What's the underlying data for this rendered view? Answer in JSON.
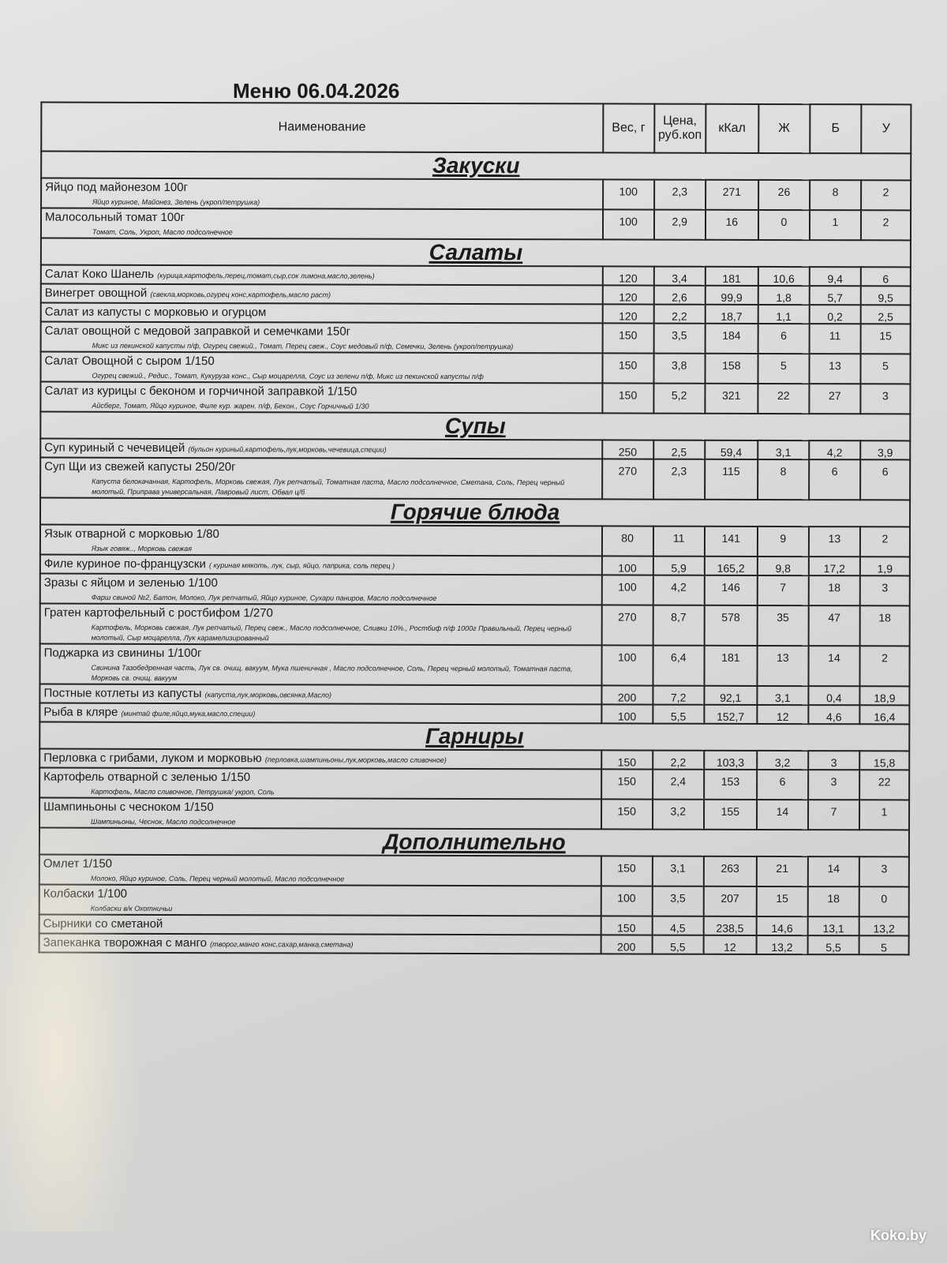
{
  "title": "Меню 06.04.2026",
  "columns": [
    "Наименование",
    "Вес, г",
    "Цена, руб.коп",
    "кКал",
    "Ж",
    "Б",
    "У"
  ],
  "sections": [
    {
      "title": "Закуски",
      "items": [
        {
          "name": "Яйцо под майонезом 100г",
          "ingredients": "Яйцо куриное, Майонез, Зелень (укроп/петрушка)",
          "inline": false,
          "values": [
            "100",
            "2,3",
            "271",
            "26",
            "8",
            "2"
          ]
        },
        {
          "name": "Малосольный томат 100г",
          "ingredients": "Томат, Соль, Укроп, Масло подсолнечное",
          "inline": false,
          "values": [
            "100",
            "2,9",
            "16",
            "0",
            "1",
            "2"
          ]
        }
      ]
    },
    {
      "title": "Салаты",
      "items": [
        {
          "name": "Салат Коко Шанель",
          "ingredients": "(курица,картофель,перец,томат,сыр,сок лимона,масло,зелень)",
          "inline": true,
          "values": [
            "120",
            "3,4",
            "181",
            "10,6",
            "9,4",
            "6"
          ]
        },
        {
          "name": "Винегрет овощной",
          "ingredients": "(свекла,морковь,огурец конс,картофель,масло раст)",
          "inline": true,
          "values": [
            "120",
            "2,6",
            "99,9",
            "1,8",
            "5,7",
            "9,5"
          ]
        },
        {
          "name": "Салат из капусты с морковью и огурцом",
          "ingredients": "",
          "inline": true,
          "values": [
            "120",
            "2,2",
            "18,7",
            "1,1",
            "0,2",
            "2,5"
          ]
        },
        {
          "name": "Салат овощной с медовой заправкой и семечками 150г",
          "ingredients": "Микс из пекинской капусты п/ф, Огурец свежий., Томат, Перец свеж., Соус медовый п/ф, Семечки, Зелень (укроп/петрушка)",
          "inline": false,
          "values": [
            "150",
            "3,5",
            "184",
            "6",
            "11",
            "15"
          ]
        },
        {
          "name": "Салат Овощной с сыром 1/150",
          "ingredients": "Огурец свежий., Редис., Томат, Кукуруза конс., Сыр моцарелла, Соус из зелени п/ф, Микс из пекинской капусты п/ф",
          "inline": false,
          "values": [
            "150",
            "3,8",
            "158",
            "5",
            "13",
            "5"
          ]
        },
        {
          "name": "Салат из курицы с беконом и горчичной заправкой 1/150",
          "ingredients": "Айсберг, Томат, Яйцо куриное, Филе кур. жарен. п/ф, Бекон., Соус Горчичный 1/30",
          "inline": false,
          "values": [
            "150",
            "5,2",
            "321",
            "22",
            "27",
            "3"
          ]
        }
      ]
    },
    {
      "title": "Супы",
      "items": [
        {
          "name": "Суп куриный с чечевицей",
          "ingredients": "(бульон куриный,картофель,лук,морковь,чечевица,специи)",
          "inline": true,
          "values": [
            "250",
            "2,5",
            "59,4",
            "3,1",
            "4,2",
            "3,9"
          ]
        },
        {
          "name": "Суп Щи из свежей капусты 250/20г",
          "ingredients": "Капуста белокачанная, Картофель, Морковь свежая, Лук репчатый, Томатная паста, Масло подсолнечное, Сметана, Соль, Перец черный молотый, Приправа универсальная, Лавровый лист, Обвал ц/б",
          "inline": false,
          "values": [
            "270",
            "2,3",
            "115",
            "8",
            "6",
            "6"
          ]
        }
      ]
    },
    {
      "title": "Горячие блюда",
      "items": [
        {
          "name": "Язык отварной с морковью 1/80",
          "ingredients": "Язык говяж.., Морковь свежая",
          "inline": false,
          "values": [
            "80",
            "11",
            "141",
            "9",
            "13",
            "2"
          ]
        },
        {
          "name": "Филе куриное по-французски",
          "ingredients": "( куриная мякоть, лук, сыр, яйцо, паприка, соль перец )",
          "inline": true,
          "values": [
            "100",
            "5,9",
            "165,2",
            "9,8",
            "17,2",
            "1,9"
          ]
        },
        {
          "name": "Зразы с яйцом и зеленью 1/100",
          "ingredients": "Фарш свиной №2, Батон, Молоко, Лук репчатый, Яйцо куриное, Сухари паниров, Масло подсолнечное",
          "inline": false,
          "values": [
            "100",
            "4,2",
            "146",
            "7",
            "18",
            "3"
          ]
        },
        {
          "name": "Гратен картофельный с ростбифом 1/270",
          "ingredients": "Картофель, Морковь свежая, Лук репчатый, Перец свеж., Масло подсолнечное, Сливки 10%., Ростбиф п/ф 1000г Правильный, Перец черный молотый, Сыр моцарелла, Лук карамелизированный",
          "inline": false,
          "values": [
            "270",
            "8,7",
            "578",
            "35",
            "47",
            "18"
          ]
        },
        {
          "name": "Поджарка из свинины 1/100г",
          "ingredients": "Свинина Тазобедренная часть, Лук св. очищ. вакуум, Мука пшеничная , Масло подсолнечное, Соль, Перец черный молотый, Томатная паста, Морковь св. очищ. вакуум",
          "inline": false,
          "values": [
            "100",
            "6,4",
            "181",
            "13",
            "14",
            "2"
          ]
        },
        {
          "name": "Постные котлеты из капусты",
          "ingredients": "(капуста,лук,морковь,овсянка,Масло)",
          "inline": true,
          "values": [
            "200",
            "7,2",
            "92,1",
            "3,1",
            "0,4",
            "18,9"
          ]
        },
        {
          "name": "Рыба в кляре",
          "ingredients": "(минтай филе,яйцо,мука,масло,специи)",
          "inline": true,
          "values": [
            "100",
            "5,5",
            "152,7",
            "12",
            "4,6",
            "16,4"
          ]
        }
      ]
    },
    {
      "title": "Гарниры",
      "items": [
        {
          "name": "Перловка с грибами, луком и морковью",
          "ingredients": "(перловка,шампиньоны,лук,морковь,масло сливочное)",
          "inline": true,
          "values": [
            "150",
            "2,2",
            "103,3",
            "3,2",
            "3",
            "15,8"
          ]
        },
        {
          "name": "Картофель отварной с зеленью 1/150",
          "ingredients": "Картофель, Масло сливочное, Петрушка/ укроп, Соль",
          "inline": false,
          "values": [
            "150",
            "2,4",
            "153",
            "6",
            "3",
            "22"
          ]
        },
        {
          "name": "Шампиньоны с чесноком 1/150",
          "ingredients": "Шампиньоны, Чеснок, Масло подсолнечное",
          "inline": false,
          "values": [
            "150",
            "3,2",
            "155",
            "14",
            "7",
            "1"
          ]
        }
      ]
    },
    {
      "title": "Дополнительно",
      "items": [
        {
          "name": "Омлет 1/150",
          "ingredients": "Молоко, Яйцо куриное, Соль, Перец черный молотый, Масло подсолнечное",
          "inline": false,
          "values": [
            "150",
            "3,1",
            "263",
            "21",
            "14",
            "3"
          ]
        },
        {
          "name": "Колбаски 1/100",
          "ingredients": "Колбаски в/к Охотничьи",
          "inline": false,
          "values": [
            "100",
            "3,5",
            "207",
            "15",
            "18",
            "0"
          ]
        },
        {
          "name": "Сырники со сметаной",
          "ingredients": "",
          "inline": true,
          "values": [
            "150",
            "4,5",
            "238,5",
            "14,6",
            "13,1",
            "13,2"
          ]
        },
        {
          "name": "Запеканка творожная с манго",
          "ingredients": "(творог,манго конс,сахар,манка,сметана)",
          "inline": true,
          "values": [
            "200",
            "5,5",
            "12",
            "13,2",
            "5,5",
            "5"
          ]
        }
      ]
    }
  ],
  "watermark": "Koko.by"
}
